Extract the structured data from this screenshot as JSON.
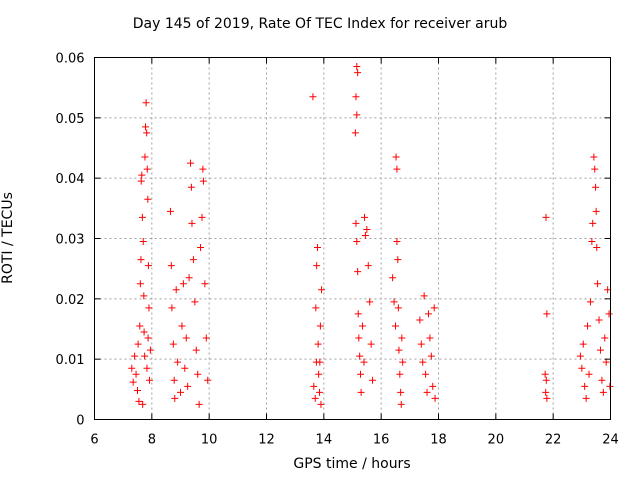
{
  "chart_data": {
    "type": "scatter",
    "title": "Day 145 of 2019, Rate Of TEC Index for receiver arub",
    "xlabel": "GPS time / hours",
    "ylabel": "ROTI / TECUs",
    "xlim": [
      6,
      24
    ],
    "ylim": [
      0,
      0.06
    ],
    "xticks": [
      6,
      8,
      10,
      12,
      14,
      16,
      18,
      20,
      22,
      24
    ],
    "yticks": [
      0,
      0.01,
      0.02,
      0.03,
      0.04,
      0.05,
      0.06
    ],
    "xtick_labels": [
      "6",
      "8",
      "10",
      "12",
      "14",
      "16",
      "18",
      "20",
      "22",
      "24"
    ],
    "ytick_labels": [
      "0",
      "0.01",
      "0.02",
      "0.03",
      "0.04",
      "0.05",
      "0.06"
    ],
    "grid": true,
    "marker": "+",
    "color": "#ff0000",
    "series": [
      {
        "name": "ROTI",
        "points": [
          [
            7.3,
            0.0085
          ],
          [
            7.35,
            0.0062
          ],
          [
            7.4,
            0.0105
          ],
          [
            7.45,
            0.0075
          ],
          [
            7.5,
            0.0048
          ],
          [
            7.52,
            0.0125
          ],
          [
            7.55,
            0.003
          ],
          [
            7.58,
            0.0155
          ],
          [
            7.6,
            0.0225
          ],
          [
            7.62,
            0.0265
          ],
          [
            7.63,
            0.0395
          ],
          [
            7.65,
            0.0405
          ],
          [
            7.67,
            0.0335
          ],
          [
            7.7,
            0.0295
          ],
          [
            7.72,
            0.0205
          ],
          [
            7.75,
            0.0105
          ],
          [
            7.76,
            0.0435
          ],
          [
            7.78,
            0.0485
          ],
          [
            7.8,
            0.0525
          ],
          [
            7.82,
            0.0475
          ],
          [
            7.84,
            0.0415
          ],
          [
            7.86,
            0.0365
          ],
          [
            7.88,
            0.0255
          ],
          [
            7.9,
            0.0185
          ],
          [
            7.92,
            0.0065
          ],
          [
            7.95,
            0.0115
          ],
          [
            7.68,
            0.0025
          ],
          [
            7.73,
            0.0145
          ],
          [
            7.83,
            0.0085
          ],
          [
            7.87,
            0.0135
          ],
          [
            8.65,
            0.0345
          ],
          [
            8.68,
            0.0255
          ],
          [
            8.7,
            0.0185
          ],
          [
            8.75,
            0.0125
          ],
          [
            8.78,
            0.0065
          ],
          [
            8.8,
            0.0035
          ],
          [
            8.85,
            0.0215
          ],
          [
            8.9,
            0.0095
          ],
          [
            9.0,
            0.0045
          ],
          [
            9.05,
            0.0155
          ],
          [
            9.1,
            0.0225
          ],
          [
            9.15,
            0.0085
          ],
          [
            9.2,
            0.0135
          ],
          [
            9.25,
            0.0055
          ],
          [
            9.3,
            0.0235
          ],
          [
            9.35,
            0.0425
          ],
          [
            9.38,
            0.0385
          ],
          [
            9.4,
            0.0325
          ],
          [
            9.45,
            0.0265
          ],
          [
            9.5,
            0.0195
          ],
          [
            9.55,
            0.0115
          ],
          [
            9.6,
            0.0075
          ],
          [
            9.65,
            0.0025
          ],
          [
            9.7,
            0.0285
          ],
          [
            9.75,
            0.0335
          ],
          [
            9.78,
            0.0415
          ],
          [
            9.8,
            0.0395
          ],
          [
            9.85,
            0.0225
          ],
          [
            9.9,
            0.0135
          ],
          [
            9.95,
            0.0065
          ],
          [
            13.62,
            0.0535
          ],
          [
            13.65,
            0.0055
          ],
          [
            13.7,
            0.0035
          ],
          [
            13.72,
            0.0185
          ],
          [
            13.75,
            0.0255
          ],
          [
            13.78,
            0.0285
          ],
          [
            13.8,
            0.0125
          ],
          [
            13.82,
            0.0075
          ],
          [
            13.85,
            0.0045
          ],
          [
            13.88,
            0.0155
          ],
          [
            13.9,
            0.0025
          ],
          [
            13.92,
            0.0215
          ],
          [
            13.86,
            0.0095
          ],
          [
            13.74,
            0.0095
          ],
          [
            15.15,
            0.0585
          ],
          [
            15.18,
            0.0575
          ],
          [
            15.12,
            0.0535
          ],
          [
            15.15,
            0.0505
          ],
          [
            15.1,
            0.0475
          ],
          [
            15.12,
            0.0325
          ],
          [
            15.15,
            0.0295
          ],
          [
            15.18,
            0.0245
          ],
          [
            15.2,
            0.0175
          ],
          [
            15.22,
            0.0135
          ],
          [
            15.25,
            0.0105
          ],
          [
            15.28,
            0.0075
          ],
          [
            15.3,
            0.0045
          ],
          [
            15.35,
            0.0155
          ],
          [
            15.4,
            0.0095
          ],
          [
            15.45,
            0.0305
          ],
          [
            15.5,
            0.0315
          ],
          [
            15.55,
            0.0255
          ],
          [
            15.6,
            0.0195
          ],
          [
            15.65,
            0.0125
          ],
          [
            15.7,
            0.0065
          ],
          [
            15.42,
            0.0335
          ],
          [
            16.4,
            0.0235
          ],
          [
            16.45,
            0.0195
          ],
          [
            16.5,
            0.0155
          ],
          [
            16.52,
            0.0435
          ],
          [
            16.55,
            0.0415
          ],
          [
            16.55,
            0.0295
          ],
          [
            16.58,
            0.0265
          ],
          [
            16.6,
            0.0185
          ],
          [
            16.62,
            0.0115
          ],
          [
            16.65,
            0.0075
          ],
          [
            16.68,
            0.0045
          ],
          [
            16.7,
            0.0025
          ],
          [
            16.72,
            0.0135
          ],
          [
            16.75,
            0.0095
          ],
          [
            17.35,
            0.0165
          ],
          [
            17.4,
            0.0125
          ],
          [
            17.45,
            0.0095
          ],
          [
            17.5,
            0.0205
          ],
          [
            17.55,
            0.0075
          ],
          [
            17.6,
            0.0045
          ],
          [
            17.65,
            0.0175
          ],
          [
            17.7,
            0.0135
          ],
          [
            17.75,
            0.0105
          ],
          [
            17.8,
            0.0055
          ],
          [
            17.85,
            0.0185
          ],
          [
            17.88,
            0.0035
          ],
          [
            21.75,
            0.0335
          ],
          [
            21.78,
            0.0175
          ],
          [
            21.72,
            0.0075
          ],
          [
            21.76,
            0.0065
          ],
          [
            21.74,
            0.0045
          ],
          [
            21.78,
            0.0035
          ],
          [
            22.95,
            0.0105
          ],
          [
            23.0,
            0.0085
          ],
          [
            23.05,
            0.0125
          ],
          [
            23.1,
            0.0055
          ],
          [
            23.15,
            0.0035
          ],
          [
            23.2,
            0.0155
          ],
          [
            23.25,
            0.0075
          ],
          [
            23.3,
            0.0195
          ],
          [
            23.35,
            0.0295
          ],
          [
            23.38,
            0.0325
          ],
          [
            23.42,
            0.0435
          ],
          [
            23.45,
            0.0415
          ],
          [
            23.48,
            0.0385
          ],
          [
            23.5,
            0.0345
          ],
          [
            23.52,
            0.0285
          ],
          [
            23.55,
            0.0225
          ],
          [
            23.6,
            0.0165
          ],
          [
            23.65,
            0.0115
          ],
          [
            23.7,
            0.0065
          ],
          [
            23.75,
            0.0045
          ],
          [
            23.8,
            0.0135
          ],
          [
            23.85,
            0.0095
          ],
          [
            23.9,
            0.0215
          ],
          [
            23.95,
            0.0175
          ],
          [
            23.98,
            0.0055
          ]
        ]
      }
    ]
  }
}
